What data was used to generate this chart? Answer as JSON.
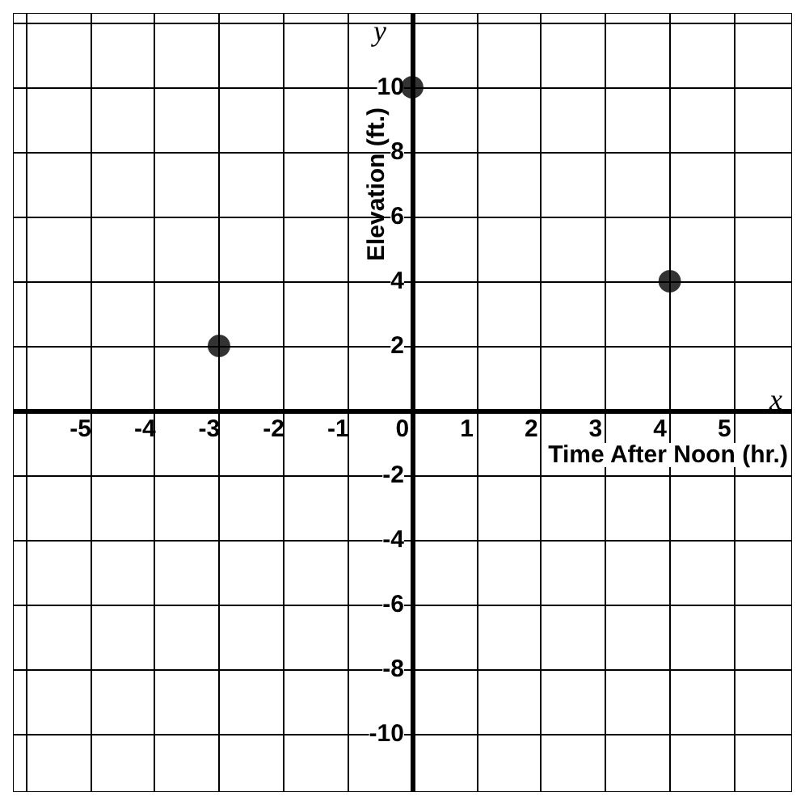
{
  "chart_data": {
    "type": "scatter",
    "xlabel": "Time After Noon (hr.)",
    "ylabel": "Elevation (ft.)",
    "annotations": [
      "x",
      "y"
    ],
    "x": [
      -3,
      0,
      4
    ],
    "series": [
      {
        "color": "#000000",
        "values": [
          2,
          10,
          4
        ]
      }
    ],
    "xlim": [
      -6.2,
      5.9
    ],
    "ylim": [
      -11.8,
      12.3
    ],
    "xticks": [
      {
        "value": -6,
        "label": null
      },
      -5,
      -4,
      -3,
      -2,
      -1,
      0,
      1,
      2,
      3,
      4,
      5
    ],
    "yticks": [
      -10,
      -8,
      -6,
      -4,
      -2,
      {
        "value": 0,
        "label": null
      },
      2,
      4,
      6,
      8,
      10,
      {
        "value": 12,
        "label": null
      }
    ],
    "grid": true,
    "marker": "circle"
  }
}
